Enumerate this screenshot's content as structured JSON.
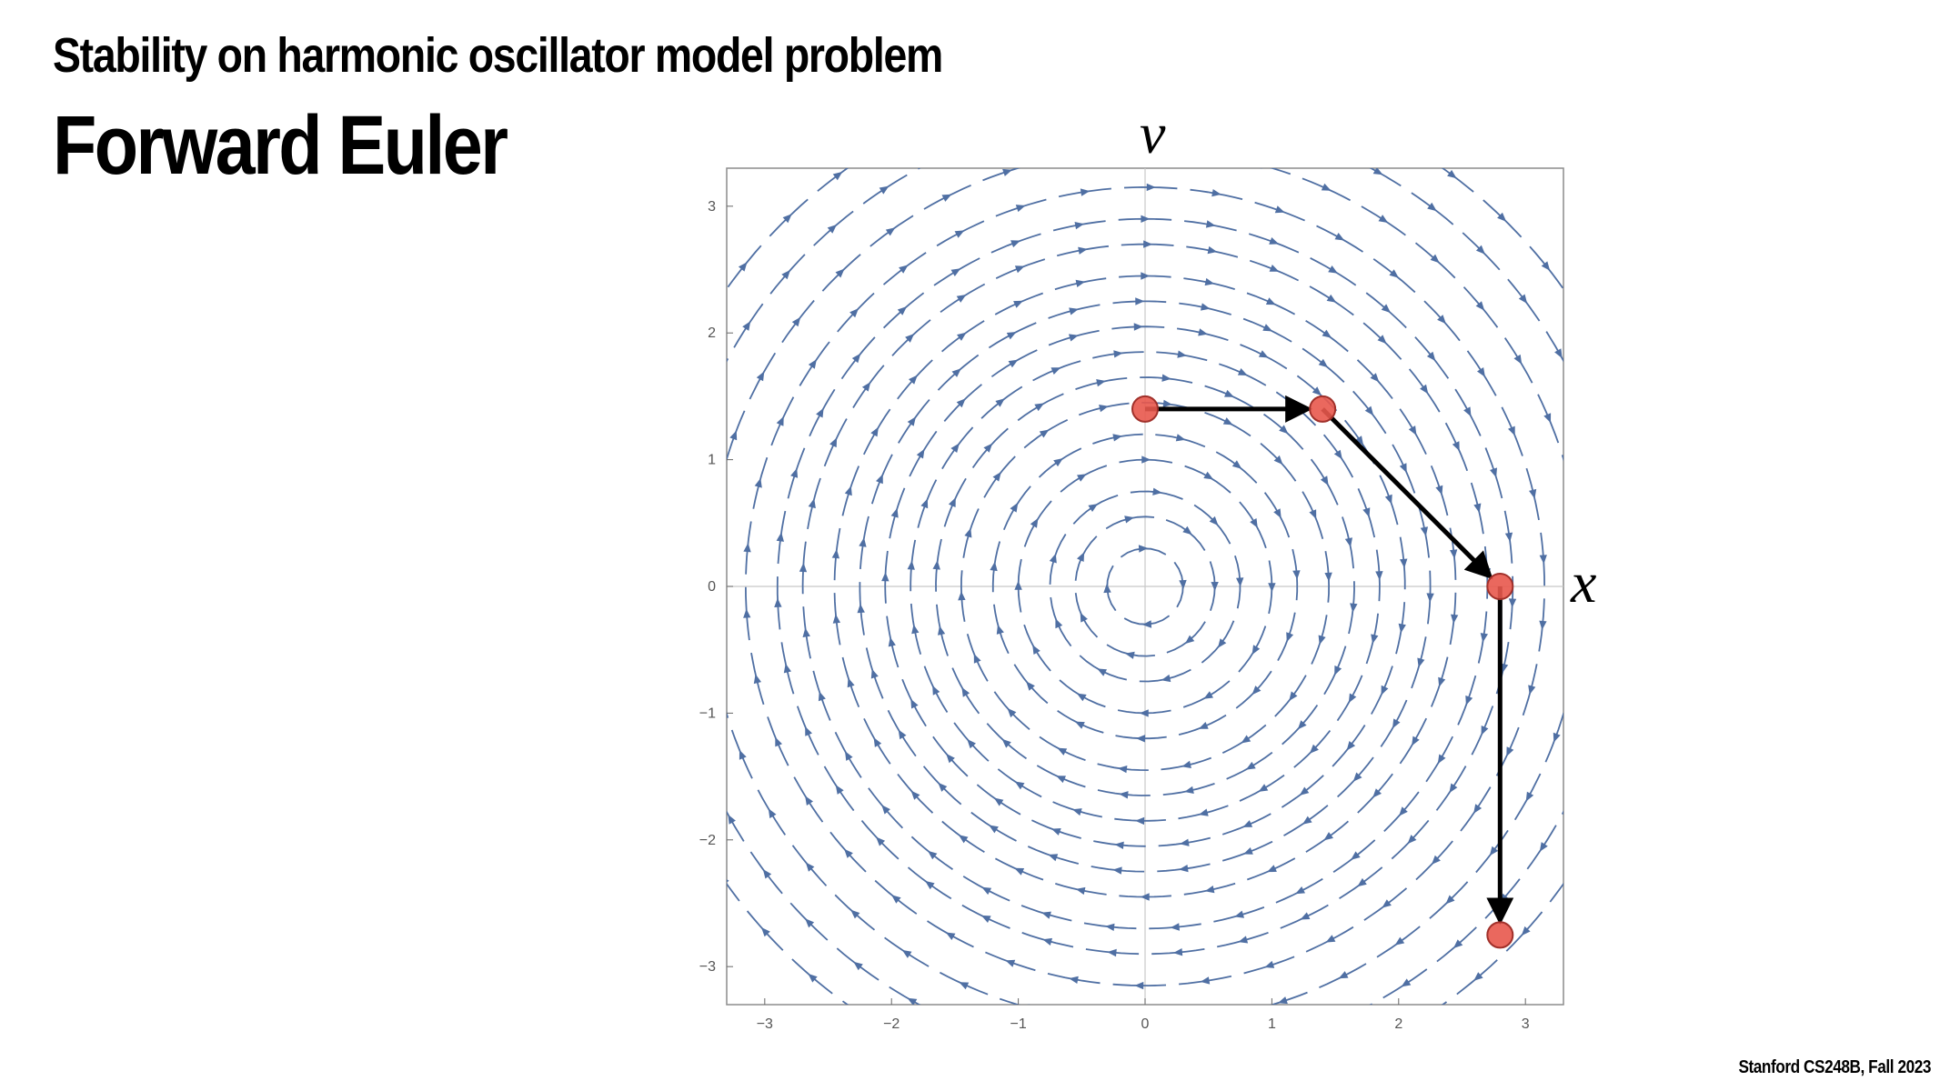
{
  "slide": {
    "title": "Stability on harmonic oscillator model problem",
    "subtitle": "Forward Euler",
    "footer": "Stanford CS248B, Fall 2023"
  },
  "colors": {
    "stream": "#4f6fa3",
    "point_fill": "#e8584d",
    "point_stroke": "#a0302a",
    "arrow": "#000000",
    "frame": "#8c8c8c",
    "axis": "#c8c8c8"
  },
  "chart_data": {
    "type": "stream",
    "xlabel": "x",
    "ylabel": "v",
    "xlim": [
      -3.3,
      3.3
    ],
    "ylim": [
      -3.3,
      3.3
    ],
    "xticks": [
      -3,
      -2,
      -1,
      0,
      1,
      2,
      3
    ],
    "yticks": [
      -3,
      -2,
      -1,
      0,
      1,
      2,
      3
    ],
    "xtick_labels": [
      "−3",
      "−2",
      "−1",
      "0",
      "1",
      "2",
      "3"
    ],
    "ytick_labels": [
      "−3",
      "−2",
      "−1",
      "0",
      "1",
      "2",
      "3"
    ],
    "field": "dx/dt = v, dv/dt = -x (clockwise circular streamlines)",
    "stream_radii": [
      0.3,
      0.55,
      0.75,
      1.0,
      1.2,
      1.45,
      1.65,
      1.85,
      2.05,
      2.25,
      2.45,
      2.7,
      2.9,
      3.15,
      3.45,
      3.75,
      4.05
    ],
    "points": [
      {
        "x": 0,
        "y": 1.4
      },
      {
        "x": 1.4,
        "y": 1.4
      },
      {
        "x": 2.8,
        "y": 0
      },
      {
        "x": 2.8,
        "y": -2.75
      }
    ],
    "steps": [
      {
        "from": 0,
        "to": 1
      },
      {
        "from": 1,
        "to": 2
      },
      {
        "from": 2,
        "to": 3
      }
    ]
  }
}
